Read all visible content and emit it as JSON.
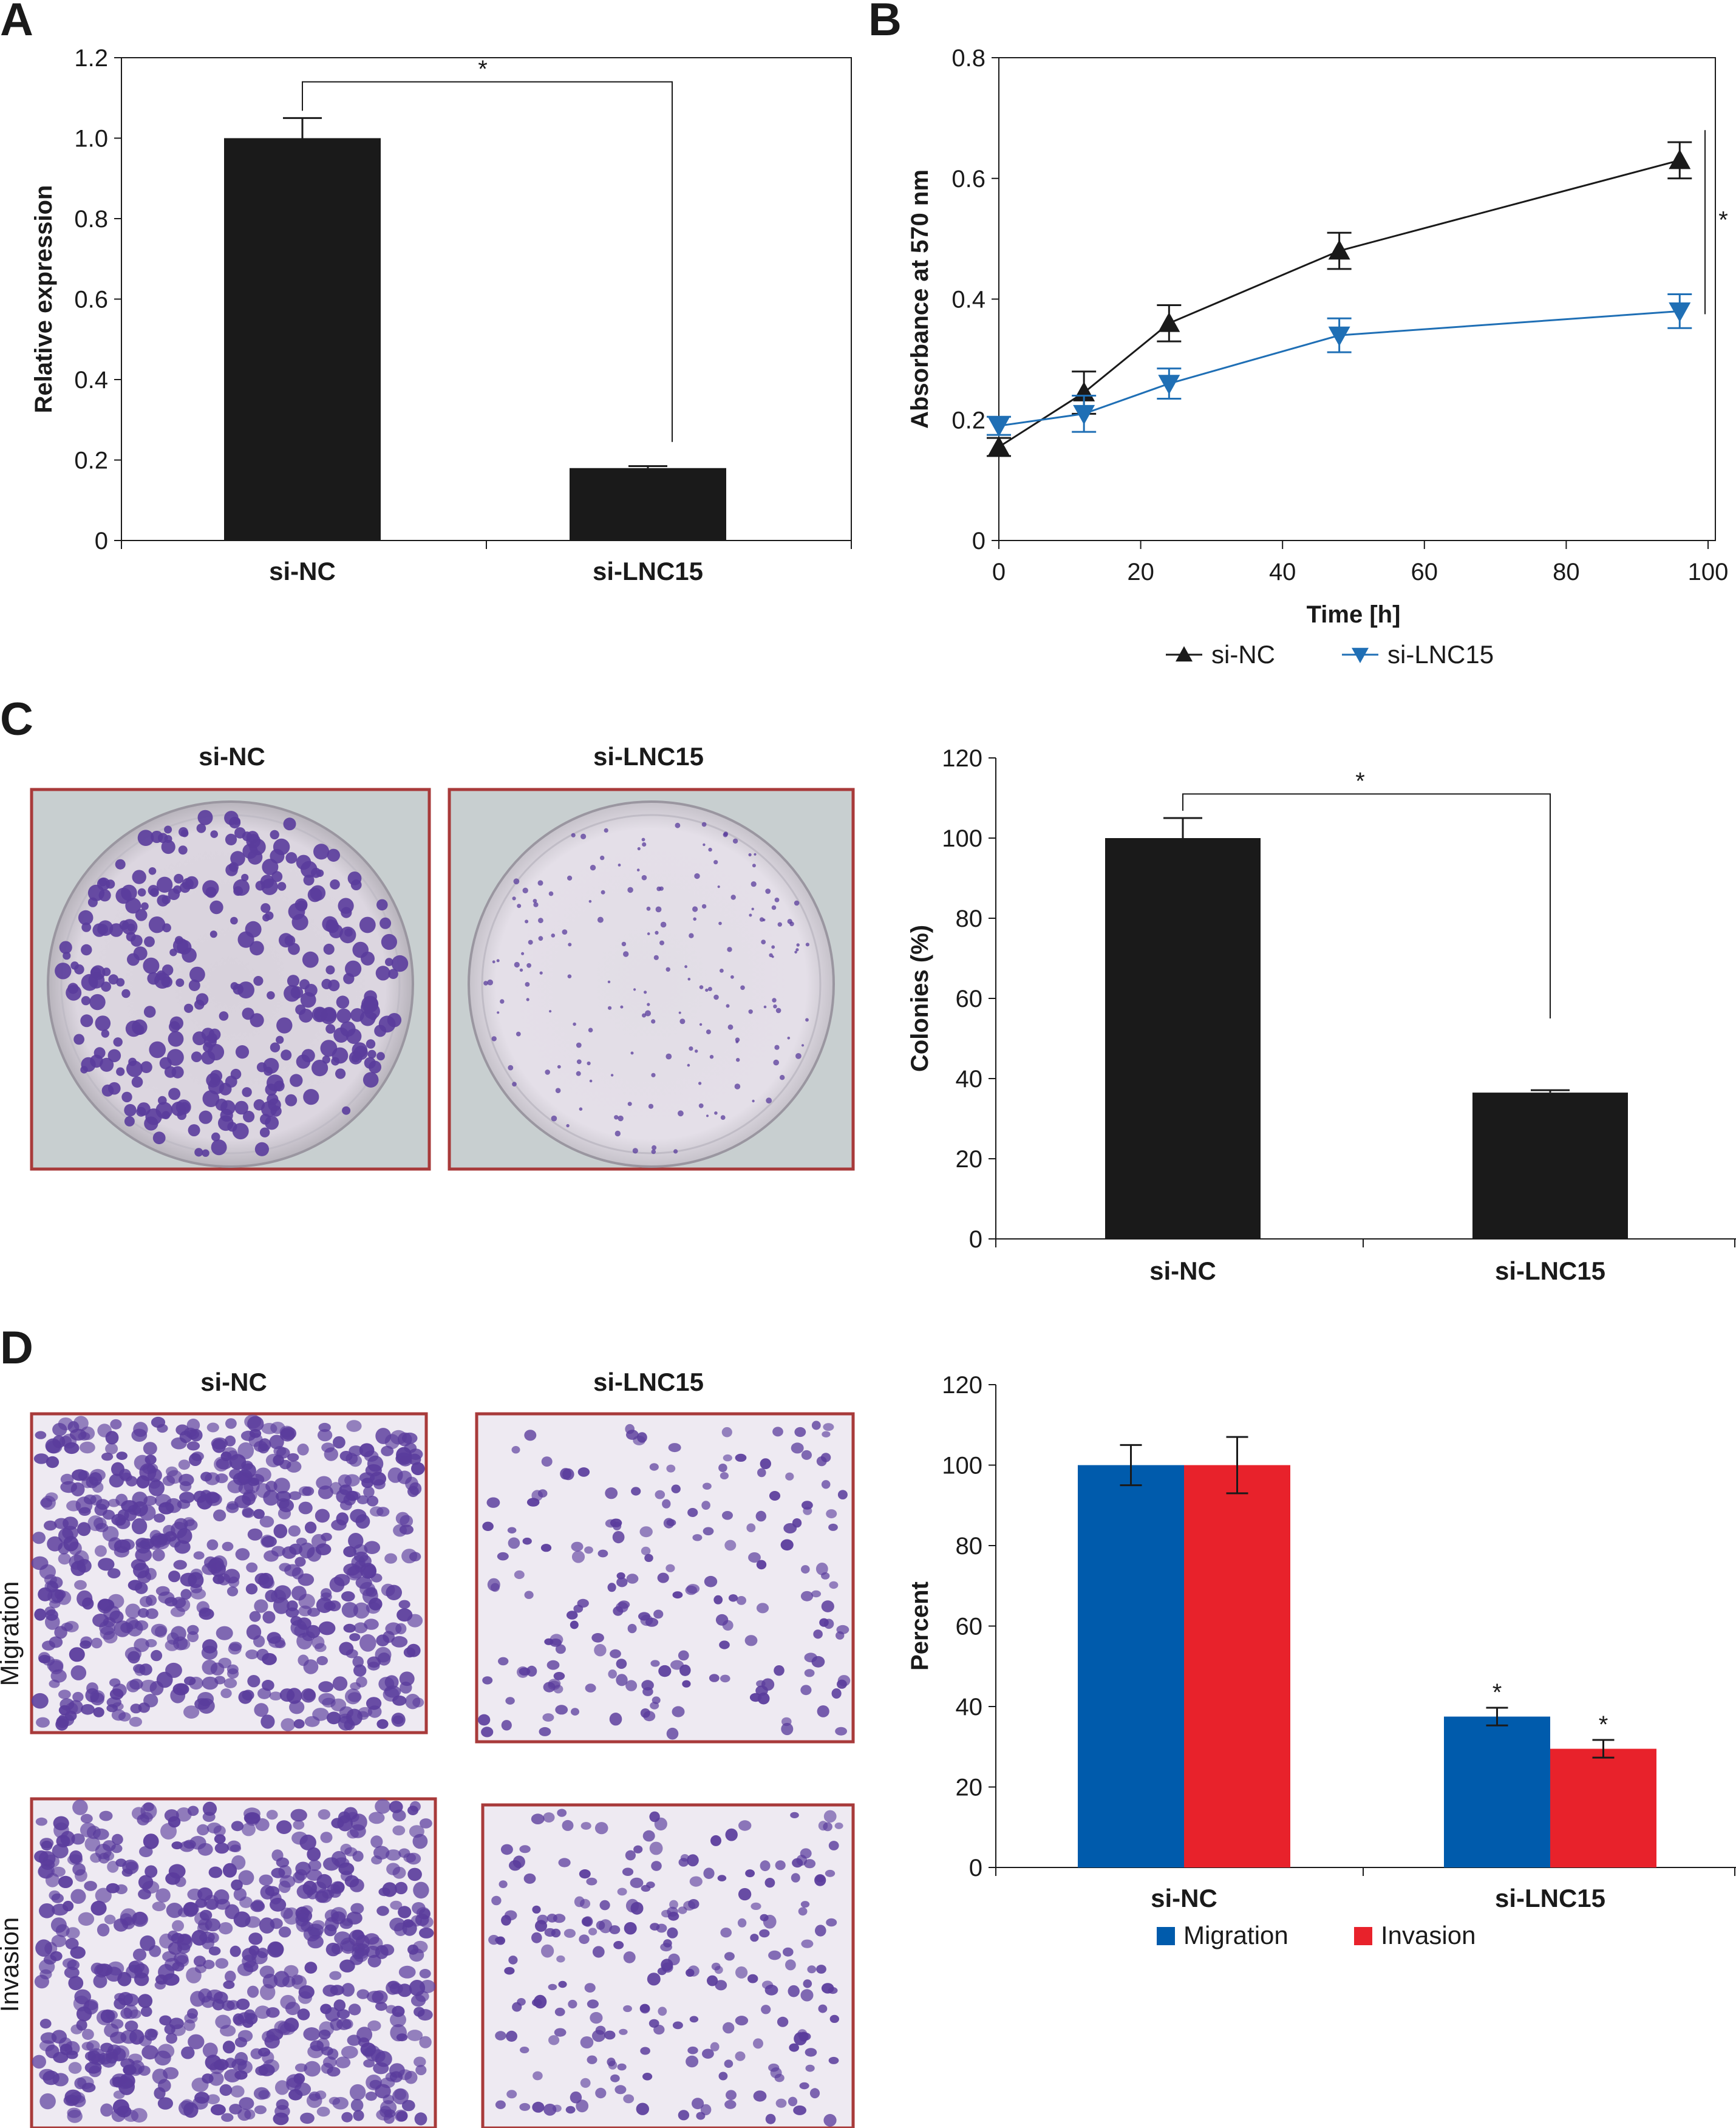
{
  "panels": {
    "a": {
      "letter": "A"
    },
    "b": {
      "letter": "B"
    },
    "c": {
      "letter": "C",
      "image_labels": [
        "si-NC",
        "si-LNC15"
      ]
    },
    "d": {
      "letter": "D",
      "column_labels": [
        "si-NC",
        "si-LNC15"
      ],
      "row_labels": [
        "Migration",
        "Invasion"
      ]
    }
  },
  "colors": {
    "black_bar": "#1a1a1a",
    "blue": "#005bac",
    "blue_line": "#1f6fb5",
    "red": "#e8222b",
    "frame": "#a83a3a",
    "stain": "#5a3c9c",
    "plate_bg": "#c8cfd0",
    "plate_dish": "#ddd6e0",
    "field_bg": "#eeeaf2"
  },
  "chart_data": [
    {
      "id": "A",
      "type": "bar",
      "categories": [
        "si-NC",
        "si-LNC15"
      ],
      "values": [
        1.0,
        0.18
      ],
      "errors": [
        0.05,
        0.005
      ],
      "ylabel": "Relative expression",
      "xlabel": "",
      "ylim": [
        0,
        1.2
      ],
      "yticks": [
        "0",
        "0.2",
        "0.4",
        "0.6",
        "0.8",
        "1.0",
        "1.2"
      ],
      "annotation": "*"
    },
    {
      "id": "B",
      "type": "line",
      "xlabel": "Time [h]",
      "ylabel": "Absorbance at 570 nm",
      "xlim": [
        0,
        100
      ],
      "ylim": [
        0,
        0.8
      ],
      "xticks": [
        "0",
        "20",
        "40",
        "60",
        "80",
        "100"
      ],
      "yticks": [
        "0",
        "0.2",
        "0.4",
        "0.6",
        "0.8"
      ],
      "x": [
        0,
        12,
        24,
        48,
        96
      ],
      "series": [
        {
          "name": "si-NC",
          "values": [
            0.155,
            0.245,
            0.36,
            0.48,
            0.63
          ],
          "errors": [
            0.015,
            0.035,
            0.03,
            0.03,
            0.03
          ],
          "marker": "triangle-up"
        },
        {
          "name": "si-LNC15",
          "values": [
            0.19,
            0.21,
            0.26,
            0.34,
            0.38
          ],
          "errors": [
            0.015,
            0.03,
            0.025,
            0.028,
            0.028
          ],
          "marker": "triangle-down"
        }
      ],
      "annotation": "*",
      "legend": "bottom"
    },
    {
      "id": "C",
      "type": "bar",
      "categories": [
        "si-NC",
        "si-LNC15"
      ],
      "values": [
        100,
        36.5
      ],
      "errors": [
        5,
        0.6
      ],
      "ylabel": "Colonies (%)",
      "xlabel": "",
      "ylim": [
        0,
        120
      ],
      "yticks": [
        "0",
        "20",
        "40",
        "60",
        "80",
        "100",
        "120"
      ],
      "annotation": "*"
    },
    {
      "id": "D",
      "type": "bar",
      "categories": [
        "si-NC",
        "si-LNC15"
      ],
      "series": [
        {
          "name": "Migration",
          "values": [
            100,
            37.5
          ],
          "errors": [
            5,
            2.2
          ]
        },
        {
          "name": "Invasion",
          "values": [
            100,
            29.5
          ],
          "errors": [
            7,
            2.2
          ]
        }
      ],
      "ylabel": "Percent",
      "xlabel": "",
      "ylim": [
        0,
        120
      ],
      "yticks": [
        "0",
        "20",
        "40",
        "60",
        "80",
        "100",
        "120"
      ],
      "annotation": "*",
      "legend": "bottom"
    }
  ]
}
